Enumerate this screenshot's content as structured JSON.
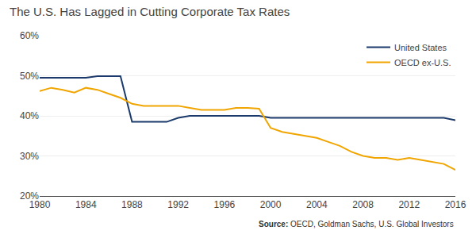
{
  "chart_data": {
    "type": "line",
    "title": "The U.S. Has Lagged in Cutting Corporate Tax Rates",
    "x": [
      1980,
      1981,
      1982,
      1983,
      1984,
      1985,
      1986,
      1987,
      1988,
      1989,
      1990,
      1991,
      1992,
      1993,
      1994,
      1995,
      1996,
      1997,
      1998,
      1999,
      2000,
      2001,
      2002,
      2003,
      2004,
      2005,
      2006,
      2007,
      2008,
      2009,
      2010,
      2011,
      2012,
      2013,
      2014,
      2015,
      2016
    ],
    "series": [
      {
        "name": "United States",
        "color": "#1b3a6b",
        "values": [
          49.5,
          49.5,
          49.5,
          49.5,
          49.5,
          49.9,
          49.9,
          49.9,
          38.5,
          38.5,
          38.5,
          38.5,
          39.5,
          40.0,
          40.0,
          40.0,
          40.0,
          40.0,
          40.0,
          40.0,
          39.5,
          39.5,
          39.5,
          39.5,
          39.5,
          39.5,
          39.5,
          39.5,
          39.5,
          39.5,
          39.5,
          39.5,
          39.5,
          39.5,
          39.5,
          39.5,
          38.9
        ]
      },
      {
        "name": "OECD ex-U.S.",
        "color": "#f0a500",
        "values": [
          46.2,
          47.0,
          46.5,
          45.8,
          47.0,
          46.5,
          45.5,
          44.5,
          43.0,
          42.5,
          42.5,
          42.5,
          42.5,
          42.0,
          41.5,
          41.5,
          41.5,
          42.0,
          42.0,
          41.8,
          37.0,
          36.0,
          35.5,
          35.0,
          34.5,
          33.5,
          32.5,
          31.0,
          30.0,
          29.5,
          29.5,
          29.0,
          29.5,
          29.0,
          28.5,
          28.0,
          26.5
        ]
      }
    ],
    "xlim": [
      1980,
      2016
    ],
    "xticks": [
      1980,
      1984,
      1988,
      1992,
      1996,
      2000,
      2004,
      2008,
      2012,
      2016
    ],
    "ylim": [
      20,
      60
    ],
    "yticks": [
      {
        "value": 20,
        "label": "20%"
      },
      {
        "value": 30,
        "label": "30%"
      },
      {
        "value": 40,
        "label": "40%"
      },
      {
        "value": 50,
        "label": "50%"
      },
      {
        "value": 60,
        "label": "60%"
      }
    ],
    "grid": true,
    "legend": "upper right",
    "annotations": [
      "Source:",
      "OECD, Goldman Sachs, U.S. Global Investors"
    ]
  }
}
